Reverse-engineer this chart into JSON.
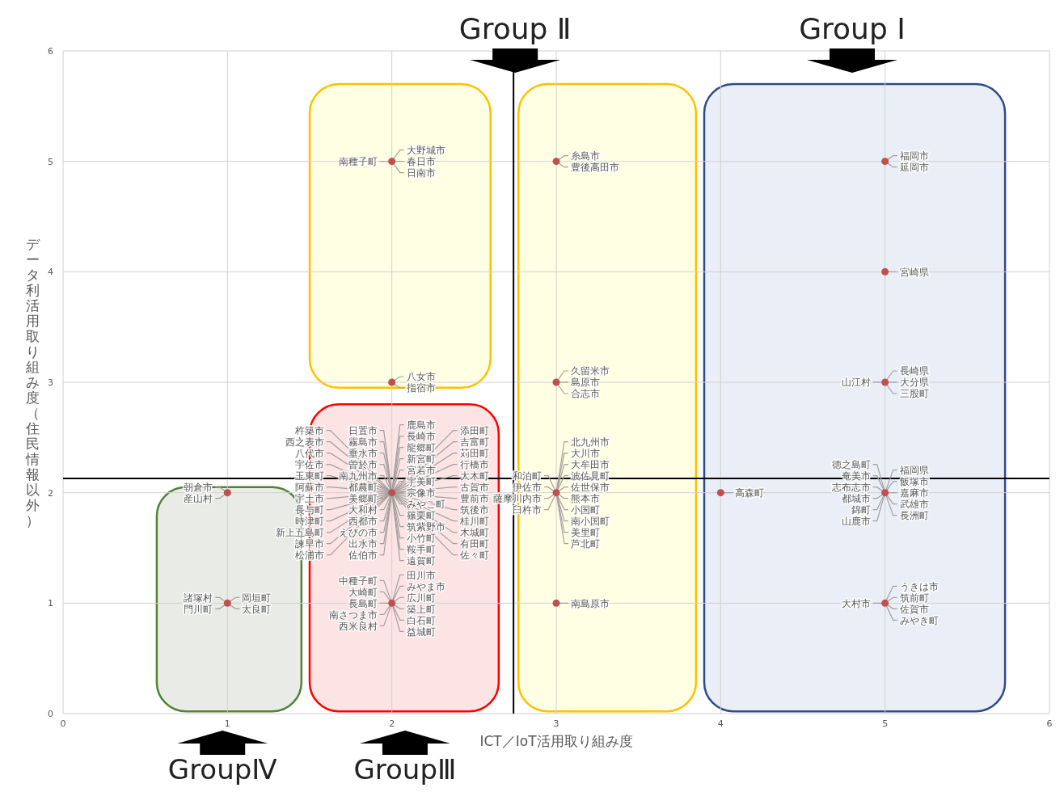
{
  "chart_data": {
    "type": "scatter",
    "xlabel": "ICT／IoT活用取り組み度",
    "ylabel": "データ利活用取り組み度（住民情報以外）",
    "xlim": [
      0,
      6
    ],
    "ylim": [
      0,
      6
    ],
    "xticks": [
      0,
      1,
      2,
      3,
      4,
      5,
      6
    ],
    "yticks": [
      0,
      1,
      2,
      3,
      4,
      5,
      6
    ],
    "grid": true,
    "marker": "circle",
    "series": [
      {
        "color": "#c0504d",
        "x": [
          1,
          1,
          2,
          2,
          2,
          2,
          3,
          3,
          3,
          3,
          4,
          5,
          5,
          5,
          5,
          5
        ],
        "values": [
          1,
          2,
          1,
          2,
          3,
          5,
          1,
          2,
          3,
          5,
          2,
          1,
          2,
          3,
          4,
          5
        ]
      }
    ],
    "ref_lines": [
      {
        "axis": "y",
        "value": 2.13,
        "color": "#000000"
      },
      {
        "axis": "x",
        "value": 2.74,
        "color": "#000000"
      }
    ],
    "annotations": [
      "Group Ⅰ",
      "Group Ⅱ",
      "GroupⅢ",
      "GroupⅣ",
      {
        "text": "諸塚村",
        "x": 1,
        "y": 1
      },
      {
        "text": "門川町",
        "x": 1,
        "y": 1
      },
      {
        "text": "岡垣町",
        "x": 1,
        "y": 1
      },
      {
        "text": "太良町",
        "x": 1,
        "y": 1
      },
      {
        "text": "朝倉市",
        "x": 1,
        "y": 2
      },
      {
        "text": "産山村",
        "x": 1,
        "y": 2
      },
      {
        "text": "中種子町",
        "x": 2,
        "y": 1
      },
      {
        "text": "大崎町",
        "x": 2,
        "y": 1
      },
      {
        "text": "長島町",
        "x": 2,
        "y": 1
      },
      {
        "text": "南さつま市",
        "x": 2,
        "y": 1
      },
      {
        "text": "西米良村",
        "x": 2,
        "y": 1
      },
      {
        "text": "田川市",
        "x": 2,
        "y": 1
      },
      {
        "text": "みやま市",
        "x": 2,
        "y": 1
      },
      {
        "text": "広川町",
        "x": 2,
        "y": 1
      },
      {
        "text": "築上町",
        "x": 2,
        "y": 1
      },
      {
        "text": "白石町",
        "x": 2,
        "y": 1
      },
      {
        "text": "益城町",
        "x": 2,
        "y": 1
      },
      {
        "text": "日置市",
        "x": 2,
        "y": 2
      },
      {
        "text": "霧島市",
        "x": 2,
        "y": 2
      },
      {
        "text": "垂水市",
        "x": 2,
        "y": 2
      },
      {
        "text": "曽於市",
        "x": 2,
        "y": 2
      },
      {
        "text": "南九州市",
        "x": 2,
        "y": 2
      },
      {
        "text": "都農町",
        "x": 2,
        "y": 2
      },
      {
        "text": "美郷町",
        "x": 2,
        "y": 2
      },
      {
        "text": "大和村",
        "x": 2,
        "y": 2
      },
      {
        "text": "西都市",
        "x": 2,
        "y": 2
      },
      {
        "text": "えびの市",
        "x": 2,
        "y": 2
      },
      {
        "text": "出水市",
        "x": 2,
        "y": 2
      },
      {
        "text": "佐伯市",
        "x": 2,
        "y": 2
      },
      {
        "text": "杵築市",
        "x": 2,
        "y": 2
      },
      {
        "text": "西之表市",
        "x": 2,
        "y": 2
      },
      {
        "text": "八代市",
        "x": 2,
        "y": 2
      },
      {
        "text": "宇佐市",
        "x": 2,
        "y": 2
      },
      {
        "text": "玉東町",
        "x": 2,
        "y": 2
      },
      {
        "text": "阿蘇市",
        "x": 2,
        "y": 2
      },
      {
        "text": "宇土市",
        "x": 2,
        "y": 2
      },
      {
        "text": "長与町",
        "x": 2,
        "y": 2
      },
      {
        "text": "時津町",
        "x": 2,
        "y": 2
      },
      {
        "text": "新上五島町",
        "x": 2,
        "y": 2
      },
      {
        "text": "諫早市",
        "x": 2,
        "y": 2
      },
      {
        "text": "松浦市",
        "x": 2,
        "y": 2
      },
      {
        "text": "鹿島市",
        "x": 2,
        "y": 2
      },
      {
        "text": "長崎市",
        "x": 2,
        "y": 2
      },
      {
        "text": "龍郷町",
        "x": 2,
        "y": 2
      },
      {
        "text": "新宮町",
        "x": 2,
        "y": 2
      },
      {
        "text": "宮若市",
        "x": 2,
        "y": 2
      },
      {
        "text": "宇美町",
        "x": 2,
        "y": 2
      },
      {
        "text": "宗像市",
        "x": 2,
        "y": 2
      },
      {
        "text": "みやこ町",
        "x": 2,
        "y": 2
      },
      {
        "text": "篠栗町",
        "x": 2,
        "y": 2
      },
      {
        "text": "筑紫野市",
        "x": 2,
        "y": 2
      },
      {
        "text": "小竹町",
        "x": 2,
        "y": 2
      },
      {
        "text": "鞍手町",
        "x": 2,
        "y": 2
      },
      {
        "text": "遠賀町",
        "x": 2,
        "y": 2
      },
      {
        "text": "添田町",
        "x": 2,
        "y": 2
      },
      {
        "text": "吉富町",
        "x": 2,
        "y": 2
      },
      {
        "text": "苅田町",
        "x": 2,
        "y": 2
      },
      {
        "text": "行橋市",
        "x": 2,
        "y": 2
      },
      {
        "text": "大木町",
        "x": 2,
        "y": 2
      },
      {
        "text": "古賀市",
        "x": 2,
        "y": 2
      },
      {
        "text": "豊前市",
        "x": 2,
        "y": 2
      },
      {
        "text": "筑後市",
        "x": 2,
        "y": 2
      },
      {
        "text": "桂川町",
        "x": 2,
        "y": 2
      },
      {
        "text": "木城町",
        "x": 2,
        "y": 2
      },
      {
        "text": "有田町",
        "x": 2,
        "y": 2
      },
      {
        "text": "佐々町",
        "x": 2,
        "y": 2
      },
      {
        "text": "八女市",
        "x": 2,
        "y": 3
      },
      {
        "text": "指宿市",
        "x": 2,
        "y": 3
      },
      {
        "text": "南種子町",
        "x": 2,
        "y": 5
      },
      {
        "text": "大野城市",
        "x": 2,
        "y": 5
      },
      {
        "text": "春日市",
        "x": 2,
        "y": 5
      },
      {
        "text": "日南市",
        "x": 2,
        "y": 5
      },
      {
        "text": "南島原市",
        "x": 3,
        "y": 1
      },
      {
        "text": "和泊町",
        "x": 3,
        "y": 2
      },
      {
        "text": "伊佐市",
        "x": 3,
        "y": 2
      },
      {
        "text": "薩摩川内市",
        "x": 3,
        "y": 2
      },
      {
        "text": "臼杵市",
        "x": 3,
        "y": 2
      },
      {
        "text": "北九州市",
        "x": 3,
        "y": 2
      },
      {
        "text": "大川市",
        "x": 3,
        "y": 2
      },
      {
        "text": "大牟田市",
        "x": 3,
        "y": 2
      },
      {
        "text": "波佐見町",
        "x": 3,
        "y": 2
      },
      {
        "text": "佐世保市",
        "x": 3,
        "y": 2
      },
      {
        "text": "熊本市",
        "x": 3,
        "y": 2
      },
      {
        "text": "小国町",
        "x": 3,
        "y": 2
      },
      {
        "text": "南小国町",
        "x": 3,
        "y": 2
      },
      {
        "text": "美里町",
        "x": 3,
        "y": 2
      },
      {
        "text": "芦北町",
        "x": 3,
        "y": 2
      },
      {
        "text": "久留米市",
        "x": 3,
        "y": 3
      },
      {
        "text": "島原市",
        "x": 3,
        "y": 3
      },
      {
        "text": "合志市",
        "x": 3,
        "y": 3
      },
      {
        "text": "糸島市",
        "x": 3,
        "y": 5
      },
      {
        "text": "豊後高田市",
        "x": 3,
        "y": 5
      },
      {
        "text": "高森町",
        "x": 4,
        "y": 2
      },
      {
        "text": "大村市",
        "x": 5,
        "y": 1
      },
      {
        "text": "うきは市",
        "x": 5,
        "y": 1
      },
      {
        "text": "筑前町",
        "x": 5,
        "y": 1
      },
      {
        "text": "佐賀市",
        "x": 5,
        "y": 1
      },
      {
        "text": "みやき町",
        "x": 5,
        "y": 1
      },
      {
        "text": "徳之島町",
        "x": 5,
        "y": 2
      },
      {
        "text": "奄美市",
        "x": 5,
        "y": 2
      },
      {
        "text": "志布志市",
        "x": 5,
        "y": 2
      },
      {
        "text": "都城市",
        "x": 5,
        "y": 2
      },
      {
        "text": "錦町",
        "x": 5,
        "y": 2
      },
      {
        "text": "山鹿市",
        "x": 5,
        "y": 2
      },
      {
        "text": "福岡県",
        "x": 5,
        "y": 2
      },
      {
        "text": "飯塚市",
        "x": 5,
        "y": 2
      },
      {
        "text": "嘉麻市",
        "x": 5,
        "y": 2
      },
      {
        "text": "武雄市",
        "x": 5,
        "y": 2
      },
      {
        "text": "長洲町",
        "x": 5,
        "y": 2
      },
      {
        "text": "山江村",
        "x": 5,
        "y": 3
      },
      {
        "text": "長崎県",
        "x": 5,
        "y": 3
      },
      {
        "text": "大分県",
        "x": 5,
        "y": 3
      },
      {
        "text": "三股町",
        "x": 5,
        "y": 3
      },
      {
        "text": "宮崎県",
        "x": 5,
        "y": 4
      },
      {
        "text": "福岡市",
        "x": 5,
        "y": 5
      },
      {
        "text": "延岡市",
        "x": 5,
        "y": 5
      }
    ]
  }
}
